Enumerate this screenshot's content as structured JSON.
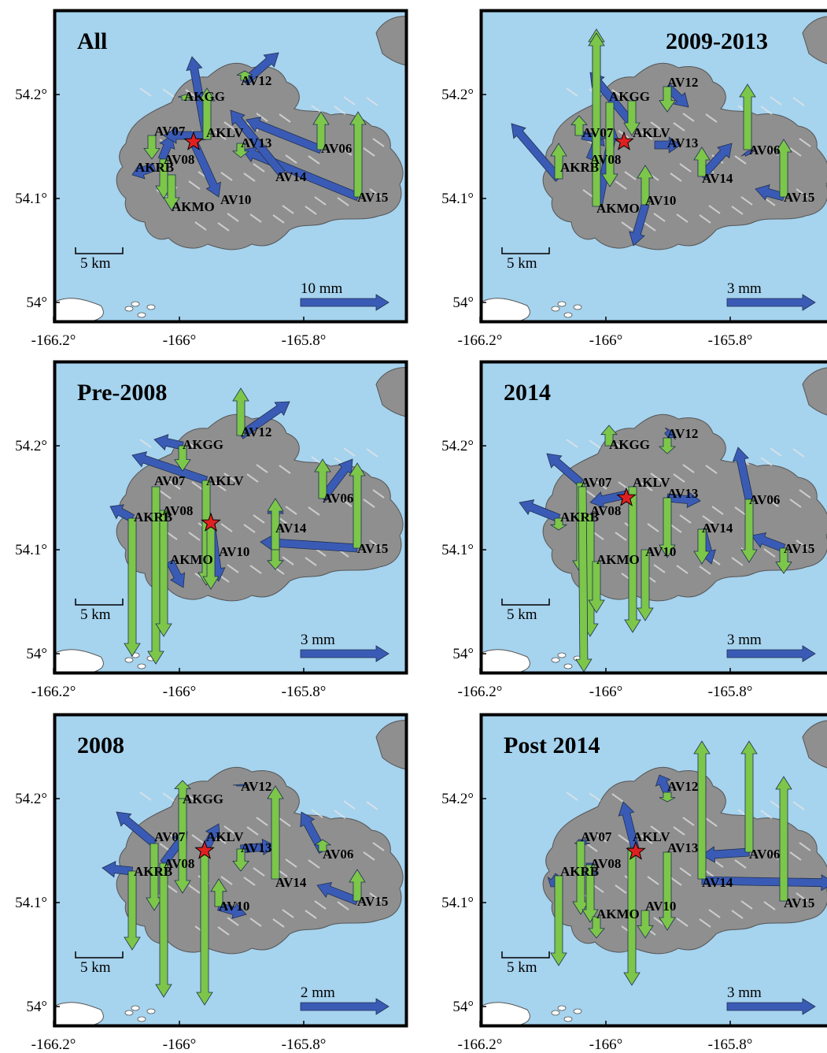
{
  "colors": {
    "sea": "#a6d3ee",
    "land": "#8f8f8f",
    "horizontal_arrow": "#3a5bb5",
    "vertical_arrow": "#7cc64a",
    "star": "#e02020"
  },
  "y_tick_labels": [
    "54.2°",
    "54.1°",
    "54°"
  ],
  "x_tick_labels": [
    "-166.2°",
    "-166°",
    "-165.8°"
  ],
  "distance_scale_label": "5 km",
  "panels": [
    {
      "title": "All",
      "vector_scale": "10 mm",
      "stations": [
        "AV12",
        "AKGG",
        "AV07",
        "AKLV",
        "AV13",
        "AV06",
        "AKRB",
        "AV08",
        "AV14",
        "AV10",
        "AV15",
        "AKMO"
      ]
    },
    {
      "title": "2009-2013",
      "vector_scale": "3 mm",
      "stations": [
        "AV12",
        "AKGG",
        "AV07",
        "AKLV",
        "AV13",
        "AV06",
        "AKRB",
        "AV08",
        "AV14",
        "AV10",
        "AV15",
        "AKMO"
      ]
    },
    {
      "title": "Pre-2008",
      "vector_scale": "3 mm",
      "stations": [
        "AV12",
        "AKGG",
        "AV07",
        "AKLV",
        "AV06",
        "AKRB",
        "AV08",
        "AV14",
        "AV10",
        "AV15",
        "AKMO"
      ]
    },
    {
      "title": "2014",
      "vector_scale": "3 mm",
      "stations": [
        "AV12",
        "AKGG",
        "AV07",
        "AKLV",
        "AV13",
        "AV06",
        "AKRB",
        "AV08",
        "AV14",
        "AV10",
        "AV15",
        "AKMO"
      ]
    },
    {
      "title": "2008",
      "vector_scale": "2 mm",
      "stations": [
        "AV12",
        "AKGG",
        "AV07",
        "AKLV",
        "AV13",
        "AV06",
        "AKRB",
        "AV08",
        "AV14",
        "AV10",
        "AV15"
      ]
    },
    {
      "title": "Post 2014",
      "vector_scale": "3 mm",
      "stations": [
        "AV12",
        "AV07",
        "AKLV",
        "AV13",
        "AV06",
        "AKRB",
        "AV08",
        "AV14",
        "AV10",
        "AV15",
        "AKMO"
      ]
    }
  ]
}
